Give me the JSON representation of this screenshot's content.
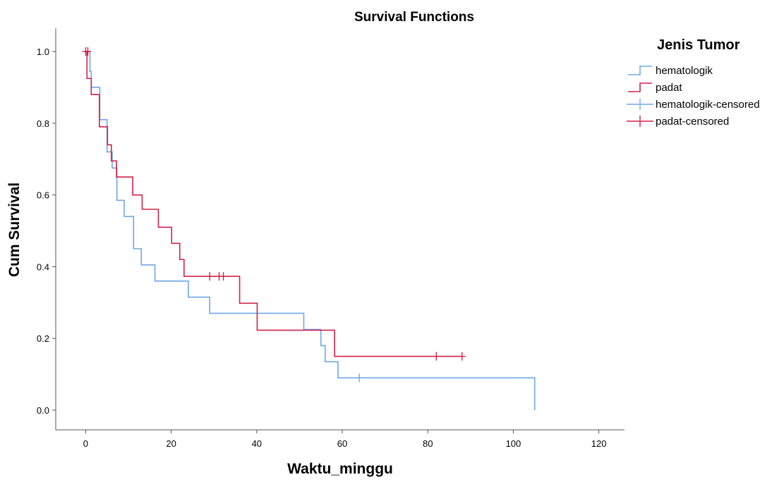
{
  "chart_data": {
    "type": "line",
    "title": "Survival Functions",
    "xlabel": "Waktu_minggu",
    "ylabel": "Cum Survival",
    "xlim": [
      -7,
      126
    ],
    "ylim": [
      -0.055,
      1.065
    ],
    "xticks": [
      0,
      20,
      40,
      60,
      80,
      100,
      120
    ],
    "yticks": [
      0.0,
      0.2,
      0.4,
      0.6,
      0.8,
      1.0
    ],
    "xtick_labels": [
      "0",
      "20",
      "40",
      "60",
      "80",
      "100",
      "120"
    ],
    "ytick_labels": [
      "0.0",
      "0.2",
      "0.4",
      "0.6",
      "0.8",
      "1.0"
    ],
    "grid": false,
    "legend": {
      "title": "Jenis Tumor",
      "placement": "top-right",
      "entries": [
        {
          "label": "hematologik",
          "marker": "step",
          "color": "#6ea8e6"
        },
        {
          "label": "padat",
          "marker": "step",
          "color": "#d0234b"
        },
        {
          "label": "hematologik-censored",
          "marker": "plus",
          "color": "#6ea8e6"
        },
        {
          "label": "padat-censored",
          "marker": "plus",
          "color": "#d0234b"
        }
      ]
    },
    "series": [
      {
        "name": "hematologik",
        "color": "#6ea8e6",
        "steps": [
          [
            0,
            1.0
          ],
          [
            1,
            0.945
          ],
          [
            1.3,
            0.9
          ],
          [
            3.3,
            0.81
          ],
          [
            5,
            0.72
          ],
          [
            6.2,
            0.675
          ],
          [
            7.3,
            0.585
          ],
          [
            9,
            0.54
          ],
          [
            11.2,
            0.45
          ],
          [
            13,
            0.405
          ],
          [
            16.2,
            0.36
          ],
          [
            24,
            0.315
          ],
          [
            29,
            0.27
          ],
          [
            51,
            0.225
          ],
          [
            55,
            0.18
          ],
          [
            56,
            0.135
          ],
          [
            59,
            0.09
          ],
          [
            105,
            0.0
          ]
        ],
        "censored": [
          {
            "x": 64,
            "y": 0.09
          }
        ]
      },
      {
        "name": "padat",
        "color": "#d0234b",
        "steps": [
          [
            0,
            1.0
          ],
          [
            0.3,
            0.925
          ],
          [
            1.3,
            0.88
          ],
          [
            3.2,
            0.79
          ],
          [
            5.1,
            0.74
          ],
          [
            6,
            0.695
          ],
          [
            7.2,
            0.65
          ],
          [
            11,
            0.6
          ],
          [
            13.2,
            0.56
          ],
          [
            17,
            0.51
          ],
          [
            20.1,
            0.465
          ],
          [
            22,
            0.42
          ],
          [
            23,
            0.373
          ],
          [
            36,
            0.298
          ],
          [
            40.1,
            0.223
          ],
          [
            58.2,
            0.15
          ]
        ],
        "end_x": 88,
        "censored": [
          {
            "x": 0,
            "y": 1.0
          },
          {
            "x": 0.5,
            "y": 1.0
          },
          {
            "x": 29,
            "y": 0.373
          },
          {
            "x": 31.2,
            "y": 0.373
          },
          {
            "x": 32.2,
            "y": 0.373
          },
          {
            "x": 82,
            "y": 0.15
          },
          {
            "x": 88,
            "y": 0.15
          }
        ]
      }
    ]
  }
}
